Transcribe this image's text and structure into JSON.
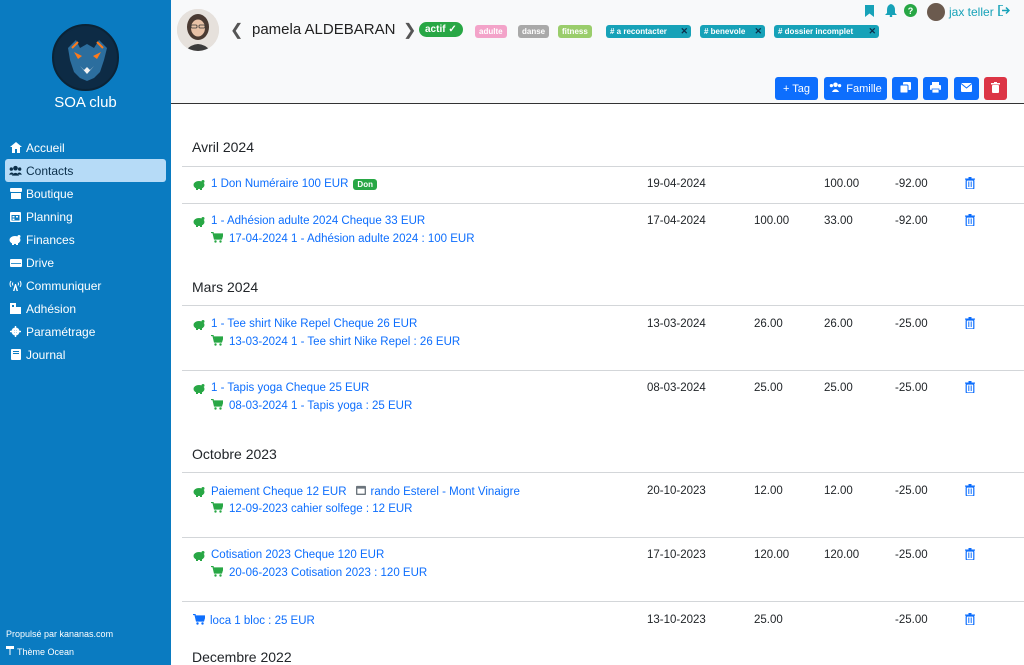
{
  "sidebar": {
    "club_name": "SOA club",
    "items": [
      {
        "label": "Accueil",
        "icon": "home-icon"
      },
      {
        "label": "Contacts",
        "icon": "users-icon",
        "active": true
      },
      {
        "label": "Boutique",
        "icon": "store-icon"
      },
      {
        "label": "Planning",
        "icon": "calendar-icon"
      },
      {
        "label": "Finances",
        "icon": "piggy-bank-icon"
      },
      {
        "label": "Drive",
        "icon": "drive-icon"
      },
      {
        "label": "Communiquer",
        "icon": "broadcast-icon"
      },
      {
        "label": "Adhésion",
        "icon": "membership-icon"
      },
      {
        "label": "Paramétrage",
        "icon": "gear-icon"
      },
      {
        "label": "Journal",
        "icon": "book-icon"
      }
    ],
    "footer_powered": "Propulsé par kananas.com",
    "footer_theme": "Thème Ocean"
  },
  "header": {
    "contact_name": "pamela ALDEBARAN",
    "status_badge": "actif",
    "tags": [
      "adulte",
      "danse",
      "fitness"
    ],
    "removable_tags": [
      "# a recontacter",
      "# benevole",
      "# dossier incomplet"
    ],
    "user_name": "jax teller",
    "buttons": {
      "tag": "+ Tag",
      "famille": "Famille"
    }
  },
  "colors": {
    "sidebar": "#0a7bc1",
    "primary": "#0d6efd",
    "success": "#28a745",
    "danger": "#dc3545",
    "teal": "#17a2b8"
  },
  "transactions": [
    {
      "month": "Avril 2024",
      "rows": [
        {
          "line": "1 Don Numéraire 100 EUR",
          "badge": "Don",
          "date": "19-04-2024",
          "a": "",
          "b": "100.00",
          "c": "-92.00"
        },
        {
          "line": "1 - Adhésion adulte 2024 Cheque 33 EUR",
          "sub": "17-04-2024 1 - Adhésion adulte 2024 : 100 EUR",
          "date": "17-04-2024",
          "a": "100.00",
          "b": "33.00",
          "c": "-92.00"
        }
      ]
    },
    {
      "month": "Mars 2024",
      "rows": [
        {
          "line": "1 - Tee shirt Nike Repel Cheque 26 EUR",
          "sub": "13-03-2024 1 - Tee shirt Nike Repel : 26 EUR",
          "date": "13-03-2024",
          "a": "26.00",
          "b": "26.00",
          "c": "-25.00"
        },
        {
          "line": "1 - Tapis yoga Cheque 25 EUR",
          "sub": "08-03-2024 1 - Tapis yoga : 25 EUR",
          "date": "08-03-2024",
          "a": "25.00",
          "b": "25.00",
          "c": "-25.00"
        }
      ]
    },
    {
      "month": "Octobre 2023",
      "rows": [
        {
          "line": "Paiement Cheque 12 EUR",
          "event": "rando Esterel - Mont Vinaigre",
          "sub": "12-09-2023 cahier solfege : 12 EUR",
          "date": "20-10-2023",
          "a": "12.00",
          "b": "12.00",
          "c": "-25.00"
        },
        {
          "line": "Cotisation 2023 Cheque 120 EUR",
          "sub": "20-06-2023 Cotisation 2023 : 120 EUR",
          "date": "17-10-2023",
          "a": "120.00",
          "b": "120.00",
          "c": "-25.00"
        },
        {
          "line": "loca 1 bloc : 25 EUR",
          "date": "13-10-2023",
          "a": "25.00",
          "b": "",
          "c": "-25.00"
        }
      ]
    },
    {
      "month": "Decembre 2022",
      "rows": []
    }
  ]
}
